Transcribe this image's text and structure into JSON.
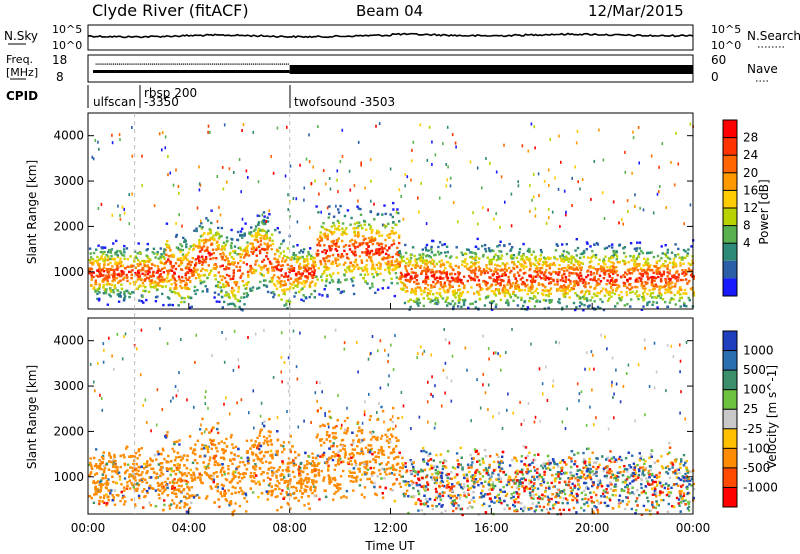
{
  "header": {
    "station": "Clyde River (fitACF)",
    "beam": "Beam 04",
    "date": "12/Mar/2015"
  },
  "noise_panel": {
    "left_label": "N.Sky",
    "left_top_tick": "10^5",
    "left_bottom_tick": "10^0",
    "right_label": "N.Search",
    "right_top_tick": "10^5",
    "right_bottom_tick": "10^0"
  },
  "freq_panel": {
    "left_label_line1": "Freq.",
    "left_label_line2": "[MHz]",
    "left_ticks": [
      "18",
      "8"
    ],
    "right_label": "Nave",
    "right_ticks": [
      "60",
      "0"
    ]
  },
  "cpid_panel": {
    "label": "CPID",
    "programs": [
      {
        "name": "ulfscan",
        "start_hour": 0.0
      },
      {
        "name": "rbsp 200",
        "start_hour": 1.85
      },
      {
        "name": "-3350",
        "start_hour": 1.85
      },
      {
        "name": "twofsound -3503",
        "start_hour": 8.0
      }
    ]
  },
  "chart_data": [
    {
      "type": "heatmap",
      "name": "power",
      "ylabel": "Slant Range [km]",
      "ylim": [
        180,
        4500
      ],
      "y_ticks": [
        "1000",
        "2000",
        "3000",
        "4000"
      ],
      "xlim": [
        0,
        24
      ],
      "colorbar_label": "Power [dB]",
      "colorbar_ticks": [
        "28",
        "24",
        "20",
        "16",
        "12",
        "8",
        "4"
      ],
      "colorbar_colors": [
        "#ff0000",
        "#ff3300",
        "#ff6600",
        "#ff9900",
        "#ffcc00",
        "#b8d200",
        "#58b050",
        "#2e8a78",
        "#2b5fa8",
        "#1a1aff"
      ]
    },
    {
      "type": "heatmap",
      "name": "velocity",
      "ylabel": "Slant Range [km]",
      "ylim": [
        180,
        4500
      ],
      "y_ticks": [
        "1000",
        "2000",
        "3000",
        "4000"
      ],
      "xlim": [
        0,
        24
      ],
      "x_ticks": [
        "00:00",
        "04:00",
        "08:00",
        "12:00",
        "16:00",
        "20:00",
        "00:00"
      ],
      "xlabel": "Time UT",
      "colorbar_label": "Velocity [m s^-1]",
      "colorbar_ticks": [
        "1000",
        "500",
        "100",
        "25",
        "-25",
        "-100",
        "-500",
        "-1000"
      ],
      "colorbar_colors": [
        "#1f3fbf",
        "#2a6fb0",
        "#3b8f6b",
        "#6fc140",
        "#c8c8c8",
        "#ffc000",
        "#ff8c00",
        "#ff4a00",
        "#ff0000"
      ]
    }
  ]
}
